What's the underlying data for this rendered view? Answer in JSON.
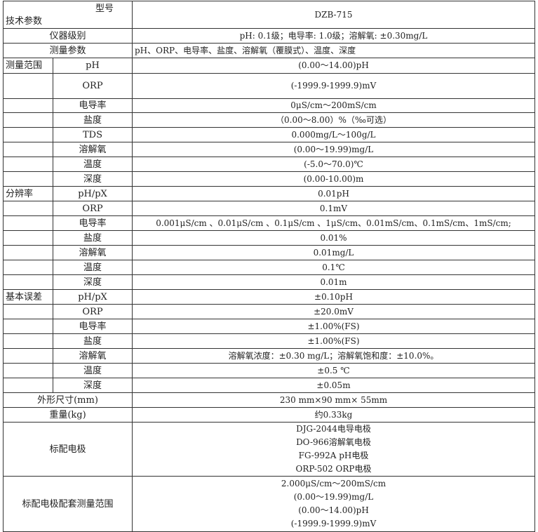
{
  "header": {
    "model_label": "型号",
    "param_label": "技术参数",
    "model_value": "DZB-715"
  },
  "rows": [
    {
      "group": "仪器级别",
      "value": "pH: 0.1级；电导率: 1.0级；溶解氧: ±0.30mg/L"
    },
    {
      "group": "测量参数",
      "value": "pH、ORP、电导率、盐度、溶解氧（覆膜式）、温度、深度",
      "align": "left"
    },
    {
      "group": "测量范围",
      "sub": "pH",
      "value": "(0.00～14.00)pH"
    },
    {
      "group": "",
      "sub": "ORP",
      "value": "(-1999.9-1999.9)mV"
    },
    {
      "group": "",
      "sub": "电导率",
      "value": "0μS/cm～200mS/cm"
    },
    {
      "group": "",
      "sub": "盐度",
      "value": "（0.00～8.00）%（‰可选）"
    },
    {
      "group": "",
      "sub": "TDS",
      "value": "0.000mg/L～100g/L"
    },
    {
      "group": "",
      "sub": "溶解氧",
      "value": "(0.00～19.99)mg/L"
    },
    {
      "group": "",
      "sub": "温度",
      "value": "(-5.0～70.0)℃"
    },
    {
      "group": "",
      "sub": "深度",
      "value": "(0.00-10.00)m"
    },
    {
      "group": "分辨率",
      "sub": "pH/pX",
      "value": "0.01pH"
    },
    {
      "group": "",
      "sub": "ORP",
      "value": "0.1mV"
    },
    {
      "group": "",
      "sub": "电导率",
      "value": "0.001μS/cm 、0.01μS/cm 、0.1μS/cm 、1μS/cm、0.01mS/cm、0.1mS/cm、1mS/cm;"
    },
    {
      "group": "",
      "sub": "盐度",
      "value": "0.01%"
    },
    {
      "group": "",
      "sub": "溶解氧",
      "value": "0.01mg/L"
    },
    {
      "group": "",
      "sub": "温度",
      "value": "0.1℃"
    },
    {
      "group": "",
      "sub": "深度",
      "value": "0.01m"
    },
    {
      "group": "基本误差",
      "sub": "pH/pX",
      "value": "±0.10pH"
    },
    {
      "group": "",
      "sub": "ORP",
      "value": "±20.0mV"
    },
    {
      "group": "",
      "sub": "电导率",
      "value": "±1.00%(FS)"
    },
    {
      "group": "",
      "sub": "盐度",
      "value": "±1.00%(FS)"
    },
    {
      "group": "",
      "sub": "溶解氧",
      "value": "溶解氧浓度：±0.30 mg/L；溶解氧饱和度：±10.0%。"
    },
    {
      "group": "",
      "sub": "温度",
      "value": "±0.5 ℃"
    },
    {
      "group": "",
      "sub": "深度",
      "value": "±0.05m"
    },
    {
      "group": "外形尺寸(mm)",
      "value": "230 mm×90 mm× 55mm"
    },
    {
      "group": "重量(kg)",
      "value": "约0.33kg"
    },
    {
      "group": "标配电极",
      "values": [
        "DJG-2044电导电极",
        "DO-966溶解氧电极",
        "FG-992A pH电极",
        "ORP-502 ORP电极"
      ]
    },
    {
      "group": "标配电极配套测量范围",
      "values": [
        "2.000μS/cm～200mS/cm",
        "(0.00～19.99)mg/L",
        "(0.00～14.00)pH",
        "(-1999.9-1999.9)mV"
      ]
    }
  ]
}
